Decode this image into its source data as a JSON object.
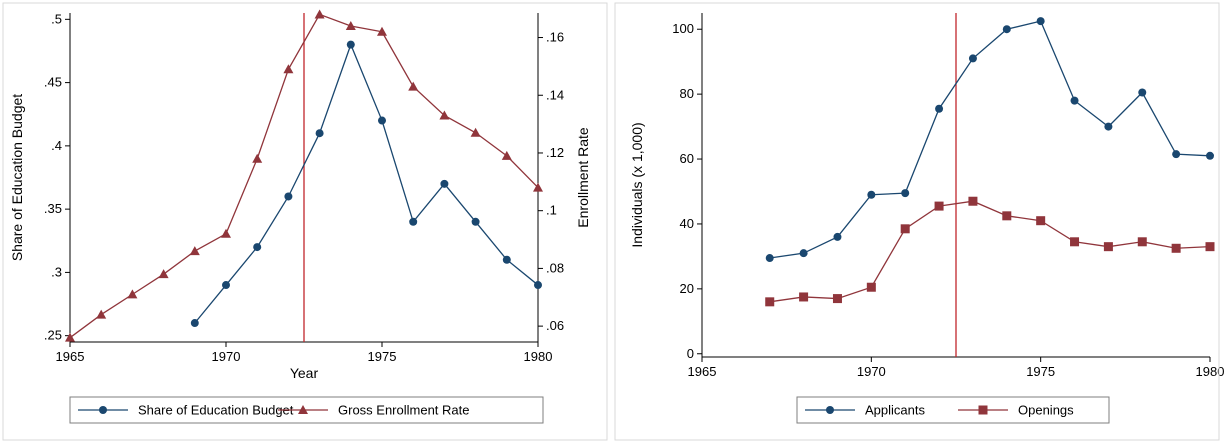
{
  "colors": {
    "series1": "#1a476f",
    "series2": "#90353b",
    "vline": "#c1272d",
    "axis": "#000000",
    "frame": "#d9d9d9"
  },
  "chart_data": [
    {
      "type": "line",
      "xlabel": "Year",
      "ylabel": "Share of Education Budget",
      "y2label": "Enrollment Rate",
      "xlim": [
        1965,
        1980
      ],
      "ylim": [
        0.245,
        0.505
      ],
      "y2lim": [
        0.0545,
        0.1685
      ],
      "xticks": [
        "1965",
        "1970",
        "1975",
        "1980"
      ],
      "xtick_values": [
        1965,
        1970,
        1975,
        1980
      ],
      "yticks": [
        ".25",
        ".3",
        ".35",
        ".4",
        ".45",
        ".5"
      ],
      "ytick_values": [
        0.25,
        0.3,
        0.35,
        0.4,
        0.45,
        0.5
      ],
      "y2ticks": [
        ".06",
        ".08",
        ".1",
        ".12",
        ".14",
        ".16"
      ],
      "y2tick_values": [
        0.06,
        0.08,
        0.1,
        0.12,
        0.14,
        0.16
      ],
      "vline": 1972.5,
      "grid": false,
      "legend_position": "bottom",
      "series": [
        {
          "name": "Share of Education Budget",
          "axis": "left",
          "marker": "circle",
          "x": [
            1969,
            1970,
            1971,
            1972,
            1973,
            1974,
            1975,
            1976,
            1977,
            1978,
            1979,
            1980
          ],
          "values": [
            0.26,
            0.29,
            0.32,
            0.36,
            0.41,
            0.48,
            0.42,
            0.34,
            0.37,
            0.34,
            0.31,
            0.29
          ]
        },
        {
          "name": "Gross Enrollment Rate",
          "axis": "right",
          "marker": "triangle",
          "x": [
            1965,
            1966,
            1967,
            1968,
            1969,
            1970,
            1971,
            1972,
            1973,
            1974,
            1975,
            1976,
            1977,
            1978,
            1979,
            1980
          ],
          "values": [
            0.056,
            0.064,
            0.071,
            0.078,
            0.086,
            0.092,
            0.118,
            0.149,
            0.168,
            0.164,
            0.162,
            0.143,
            0.133,
            0.127,
            0.119,
            0.108
          ]
        }
      ]
    },
    {
      "type": "line",
      "xlabel": "",
      "ylabel": "Individuals (x 1,000)",
      "xlim": [
        1965,
        1980
      ],
      "ylim": [
        -1,
        105
      ],
      "xticks": [
        "1965",
        "1970",
        "1975",
        "1980"
      ],
      "xtick_values": [
        1965,
        1970,
        1975,
        1980
      ],
      "yticks": [
        "0",
        "20",
        "40",
        "60",
        "80",
        "100"
      ],
      "ytick_values": [
        0,
        20,
        40,
        60,
        80,
        100
      ],
      "vline": 1972.5,
      "grid": false,
      "legend_position": "bottom",
      "series": [
        {
          "name": "Applicants",
          "axis": "left",
          "marker": "circle",
          "x": [
            1967,
            1968,
            1969,
            1970,
            1971,
            1972,
            1973,
            1974,
            1975,
            1976,
            1977,
            1978,
            1979,
            1980
          ],
          "values": [
            29.5,
            31,
            36,
            49,
            49.5,
            75.5,
            91,
            100,
            102.5,
            78,
            70,
            80.5,
            61.5,
            61
          ]
        },
        {
          "name": "Openings",
          "axis": "left",
          "marker": "square",
          "x": [
            1967,
            1968,
            1969,
            1970,
            1971,
            1972,
            1973,
            1974,
            1975,
            1976,
            1977,
            1978,
            1979,
            1980
          ],
          "values": [
            16,
            17.5,
            17,
            20.5,
            38.5,
            45.5,
            47,
            42.5,
            41,
            34.5,
            33,
            34.5,
            32.5,
            33
          ]
        }
      ]
    }
  ]
}
